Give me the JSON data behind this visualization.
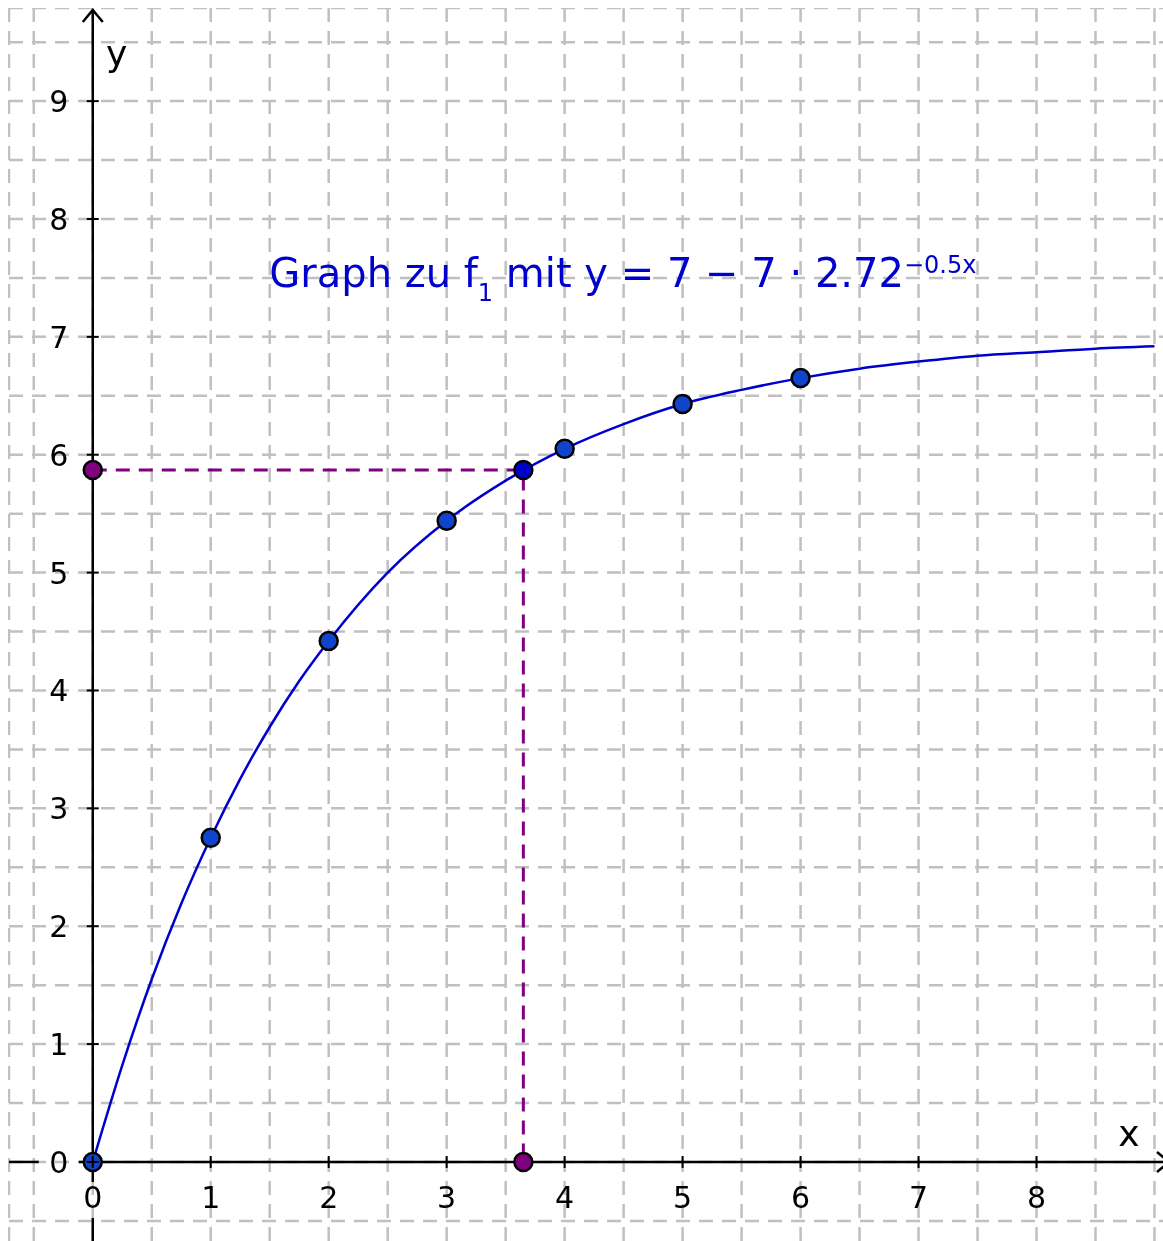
{
  "chart_data": {
    "type": "line",
    "xlabel": "x",
    "ylabel": "y",
    "annotations": [
      "Graph zu f$_{1}$ mit y  = 7 − 7 · 2.72$^{−0.5x}$"
    ],
    "xlim": [
      -0.71,
      9.14
    ],
    "ylim": [
      -0.73,
      9.79
    ],
    "xticks": [
      {
        "value": -0.5,
        "label": null
      },
      0,
      {
        "value": 0.5,
        "label": null
      },
      1,
      {
        "value": 1.5,
        "label": null
      },
      2,
      {
        "value": 2.5,
        "label": null
      },
      3,
      {
        "value": 3.5,
        "label": null
      },
      4,
      {
        "value": 4.5,
        "label": null
      },
      5,
      {
        "value": 5.5,
        "label": null
      },
      6,
      {
        "value": 6.5,
        "label": null
      },
      7,
      {
        "value": 7.5,
        "label": null
      },
      8,
      {
        "value": 8.5,
        "label": null
      },
      {
        "value": 9,
        "label": null
      }
    ],
    "yticks": [
      {
        "value": -0.5,
        "label": null
      },
      0,
      {
        "value": 0.5,
        "label": null
      },
      1,
      {
        "value": 1.5,
        "label": null
      },
      2,
      {
        "value": 2.5,
        "label": null
      },
      3,
      {
        "value": 3.5,
        "label": null
      },
      4,
      {
        "value": 4.5,
        "label": null
      },
      5,
      {
        "value": 5.5,
        "label": null
      },
      6,
      {
        "value": 6.5,
        "label": null
      },
      7,
      {
        "value": 7.5,
        "label": null
      },
      8,
      {
        "value": 8.5,
        "label": null
      },
      9,
      {
        "value": 9.5,
        "label": null
      }
    ],
    "grid": true,
    "series": [
      {
        "color": "#800080",
        "line_style": "dashed",
        "marker": "none",
        "x": [
          0,
          3.65,
          3.65
        ],
        "values": [
          5.87,
          5.87,
          0
        ]
      },
      {
        "color": "#0000cc",
        "line_style": "solid",
        "marker": "none",
        "x": [
          0,
          0.25,
          0.5,
          0.75,
          1,
          1.25,
          1.5,
          1.75,
          2,
          2.5,
          3,
          3.5,
          4,
          4.5,
          5,
          5.5,
          6,
          6.5,
          7,
          7.5,
          8,
          8.5,
          9
        ],
        "values": [
          0,
          0.82,
          1.55,
          2.19,
          2.75,
          3.25,
          3.69,
          4.08,
          4.42,
          5.0,
          5.44,
          5.78,
          6.05,
          6.26,
          6.43,
          6.55,
          6.65,
          6.73,
          6.79,
          6.84,
          6.87,
          6.9,
          6.92
        ]
      },
      {
        "type": "scatter",
        "color": "#1144cc",
        "marker": "circle",
        "x": [
          0,
          1,
          2,
          3,
          4,
          5,
          6
        ],
        "values": [
          0,
          2.75,
          4.42,
          5.44,
          6.05,
          6.43,
          6.65
        ]
      },
      {
        "type": "scatter",
        "color": "#0000cc",
        "marker": "circle",
        "x": [
          3.65
        ],
        "values": [
          5.87
        ]
      },
      {
        "type": "scatter",
        "color": "#800080",
        "marker": "circle",
        "x": [
          0,
          3.65
        ],
        "values": [
          5.87,
          0
        ]
      }
    ]
  }
}
